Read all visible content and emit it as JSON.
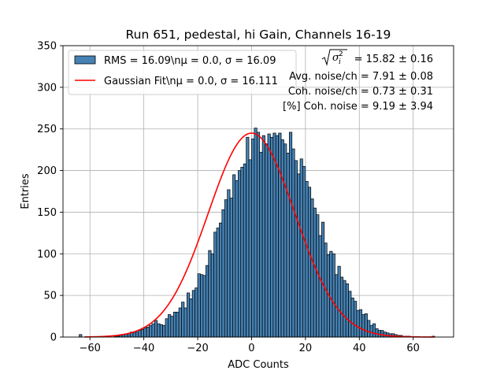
{
  "chart_data": {
    "type": "bar",
    "title": "Run 651, pedestal, hi Gain, Channels 16-19",
    "xlabel": "ADC Counts",
    "ylabel": "Entries",
    "xlim": [
      -70,
      75
    ],
    "ylim": [
      0,
      350
    ],
    "xticks": [
      -60,
      -40,
      -20,
      0,
      20,
      40,
      60
    ],
    "yticks": [
      0,
      50,
      100,
      150,
      200,
      250,
      300,
      350
    ],
    "grid": true,
    "bar_color": "#4682b4",
    "fit_color": "#ff0000",
    "bins": {
      "start": -64,
      "width": 1,
      "values": [
        3,
        0,
        0,
        0,
        0,
        0,
        0,
        0,
        0,
        0,
        0,
        0,
        0,
        1,
        1,
        2,
        3,
        4,
        3,
        6,
        5,
        6,
        8,
        9,
        11,
        12,
        14,
        16,
        20,
        16,
        15,
        14,
        22,
        27,
        25,
        30,
        30,
        35,
        42,
        35,
        53,
        46,
        56,
        59,
        76,
        75,
        74,
        86,
        104,
        100,
        126,
        131,
        137,
        153,
        165,
        177,
        167,
        195,
        188,
        200,
        204,
        208,
        240,
        213,
        238,
        251,
        246,
        222,
        242,
        232,
        244,
        240,
        245,
        242,
        245,
        237,
        232,
        221,
        246,
        226,
        212,
        196,
        214,
        205,
        187,
        180,
        166,
        155,
        147,
        122,
        138,
        113,
        99,
        103,
        100,
        75,
        85,
        72,
        68,
        64,
        55,
        47,
        43,
        32,
        33,
        27,
        28,
        20,
        14,
        16,
        10,
        8,
        8,
        6,
        5,
        4,
        4,
        3,
        2,
        2,
        1,
        1,
        1,
        0,
        0,
        0,
        0,
        0,
        0,
        0,
        0,
        1
      ]
    },
    "fit": {
      "mu": 0.0,
      "sigma": 16.111,
      "amplitude": 245
    },
    "series": [
      {
        "name": "RMS = 16.09\\n$\\mu$ = 0.0, $\\sigma$ = 16.09",
        "legend_label": "RMS = 16.09\\nμ = 0.0, σ = 16.09",
        "kind": "histogram"
      },
      {
        "name": "Gaussian Fit\\n$\\mu$ = 0.0, $\\sigma$ = 16.111",
        "legend_label": "Gaussian Fit\\nμ = 0.0, σ = 16.111",
        "kind": "line"
      }
    ],
    "annotations": {
      "line1_value": " = 15.82 ± 0.16",
      "line2": "Avg. noise/ch = 7.91 ± 0.08",
      "line3": "Coh. noise/ch = 0.73 ± 0.31",
      "line4": "[%] Coh. noise = 9.19 ± 3.94"
    },
    "legend_position": "top-left"
  }
}
